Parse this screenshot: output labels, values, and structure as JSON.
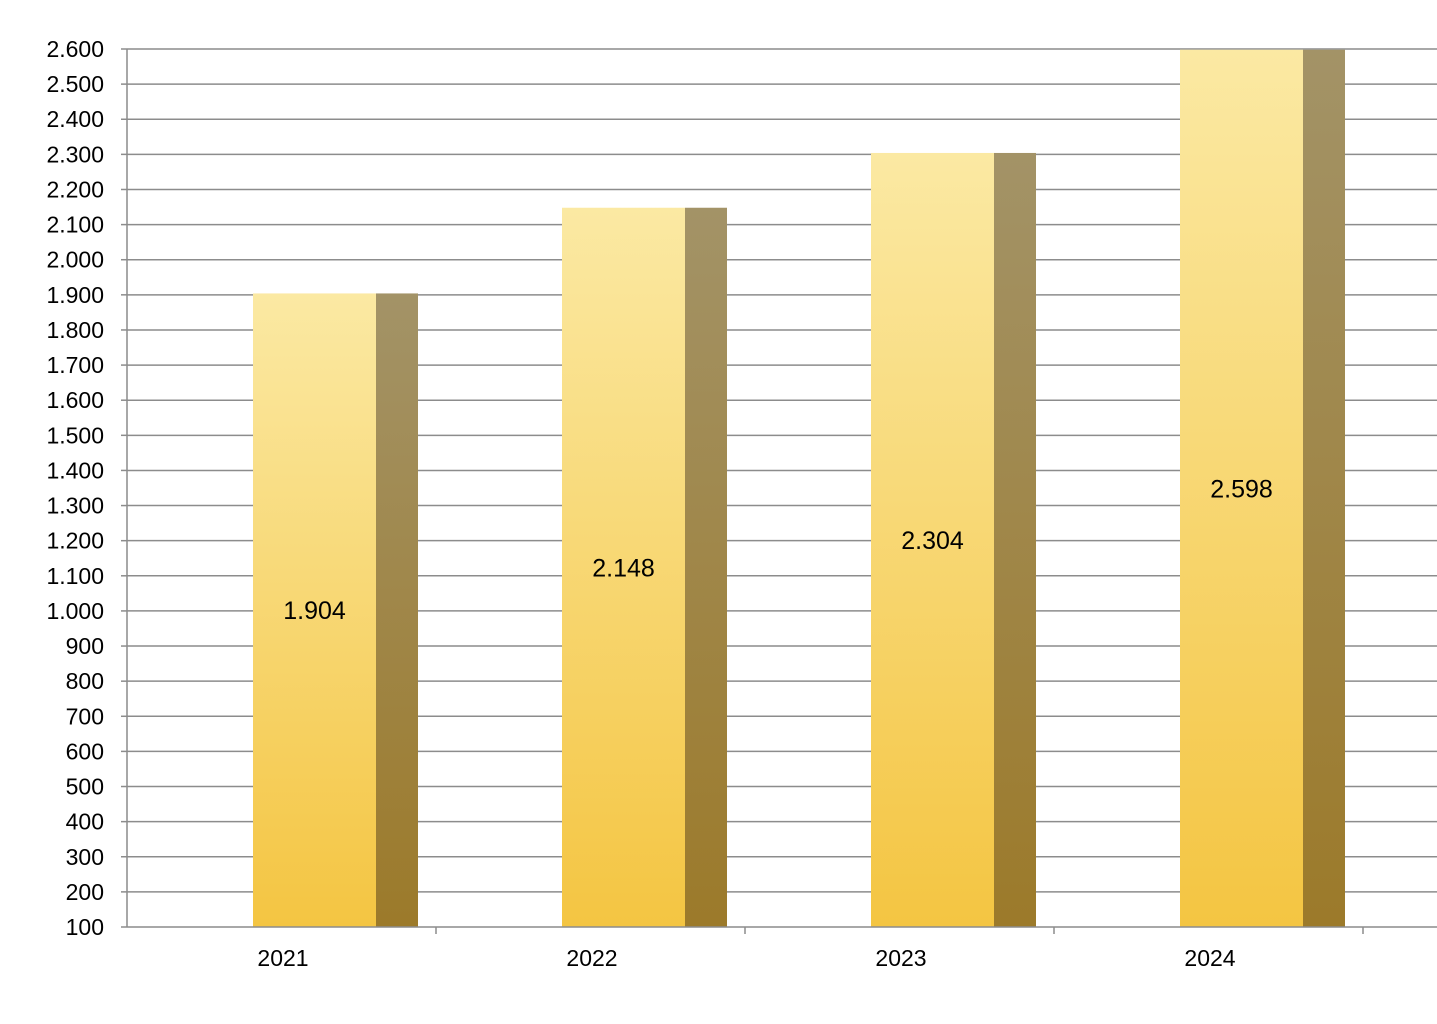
{
  "chart_data": {
    "type": "bar",
    "title": "",
    "xlabel": "",
    "ylabel": "",
    "categories": [
      "2021",
      "2022",
      "2023",
      "2024"
    ],
    "series": [
      {
        "values": [
          1904,
          2148,
          2304,
          2598
        ]
      }
    ],
    "data_labels": [
      "1.904",
      "2.148",
      "2.304",
      "2.598"
    ],
    "ylim": [
      100,
      2600
    ],
    "y_ticks": [
      100,
      200,
      300,
      400,
      500,
      600,
      700,
      800,
      900,
      1000,
      1100,
      1200,
      1300,
      1400,
      1500,
      1600,
      1700,
      1800,
      1900,
      2000,
      2100,
      2200,
      2300,
      2400,
      2500,
      2600
    ],
    "y_tick_labels": [
      "100",
      "200",
      "300",
      "400",
      "500",
      "600",
      "700",
      "800",
      "900",
      "1.000",
      "1.100",
      "1.200",
      "1.300",
      "1.400",
      "1.500",
      "1.600",
      "1.700",
      "1.800",
      "1.900",
      "2.000",
      "2.100",
      "2.200",
      "2.300",
      "2.400",
      "2.500",
      "2.600"
    ],
    "grid": true,
    "legend": "none",
    "colors": {
      "bar_front_top": "#fbe9a3",
      "bar_front_bottom": "#f4c542",
      "bar_side_top": "#a39367",
      "bar_side_bottom": "#9c7a2a",
      "grid": "#8c8c8c",
      "axis": "#8c8c8c"
    }
  }
}
